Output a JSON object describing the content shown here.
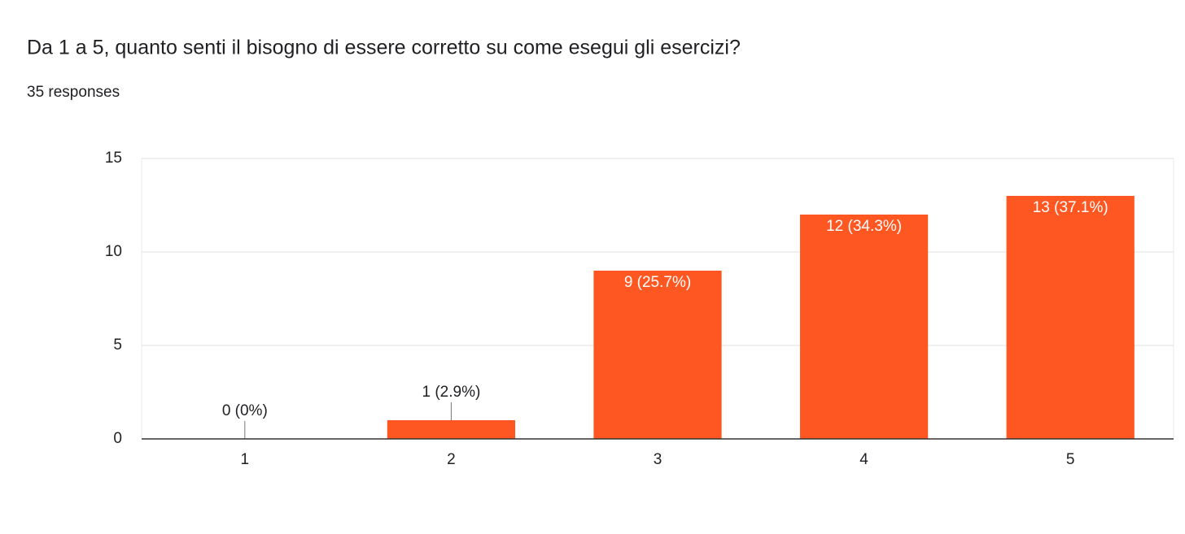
{
  "chart_data": {
    "type": "bar",
    "title": "Da 1 a 5, quanto senti il bisogno di essere corretto su come esegui gli esercizi?",
    "subtitle": "35 responses",
    "categories": [
      "1",
      "2",
      "3",
      "4",
      "5"
    ],
    "values": [
      0,
      1,
      9,
      12,
      13
    ],
    "value_labels": [
      "0 (0%)",
      "1 (2.9%)",
      "9 (25.7%)",
      "12 (34.3%)",
      "13 (37.1%)"
    ],
    "color": "#ff5722",
    "ylim": [
      0,
      15
    ],
    "yticks": [
      0,
      5,
      10,
      15
    ],
    "grid": true
  }
}
